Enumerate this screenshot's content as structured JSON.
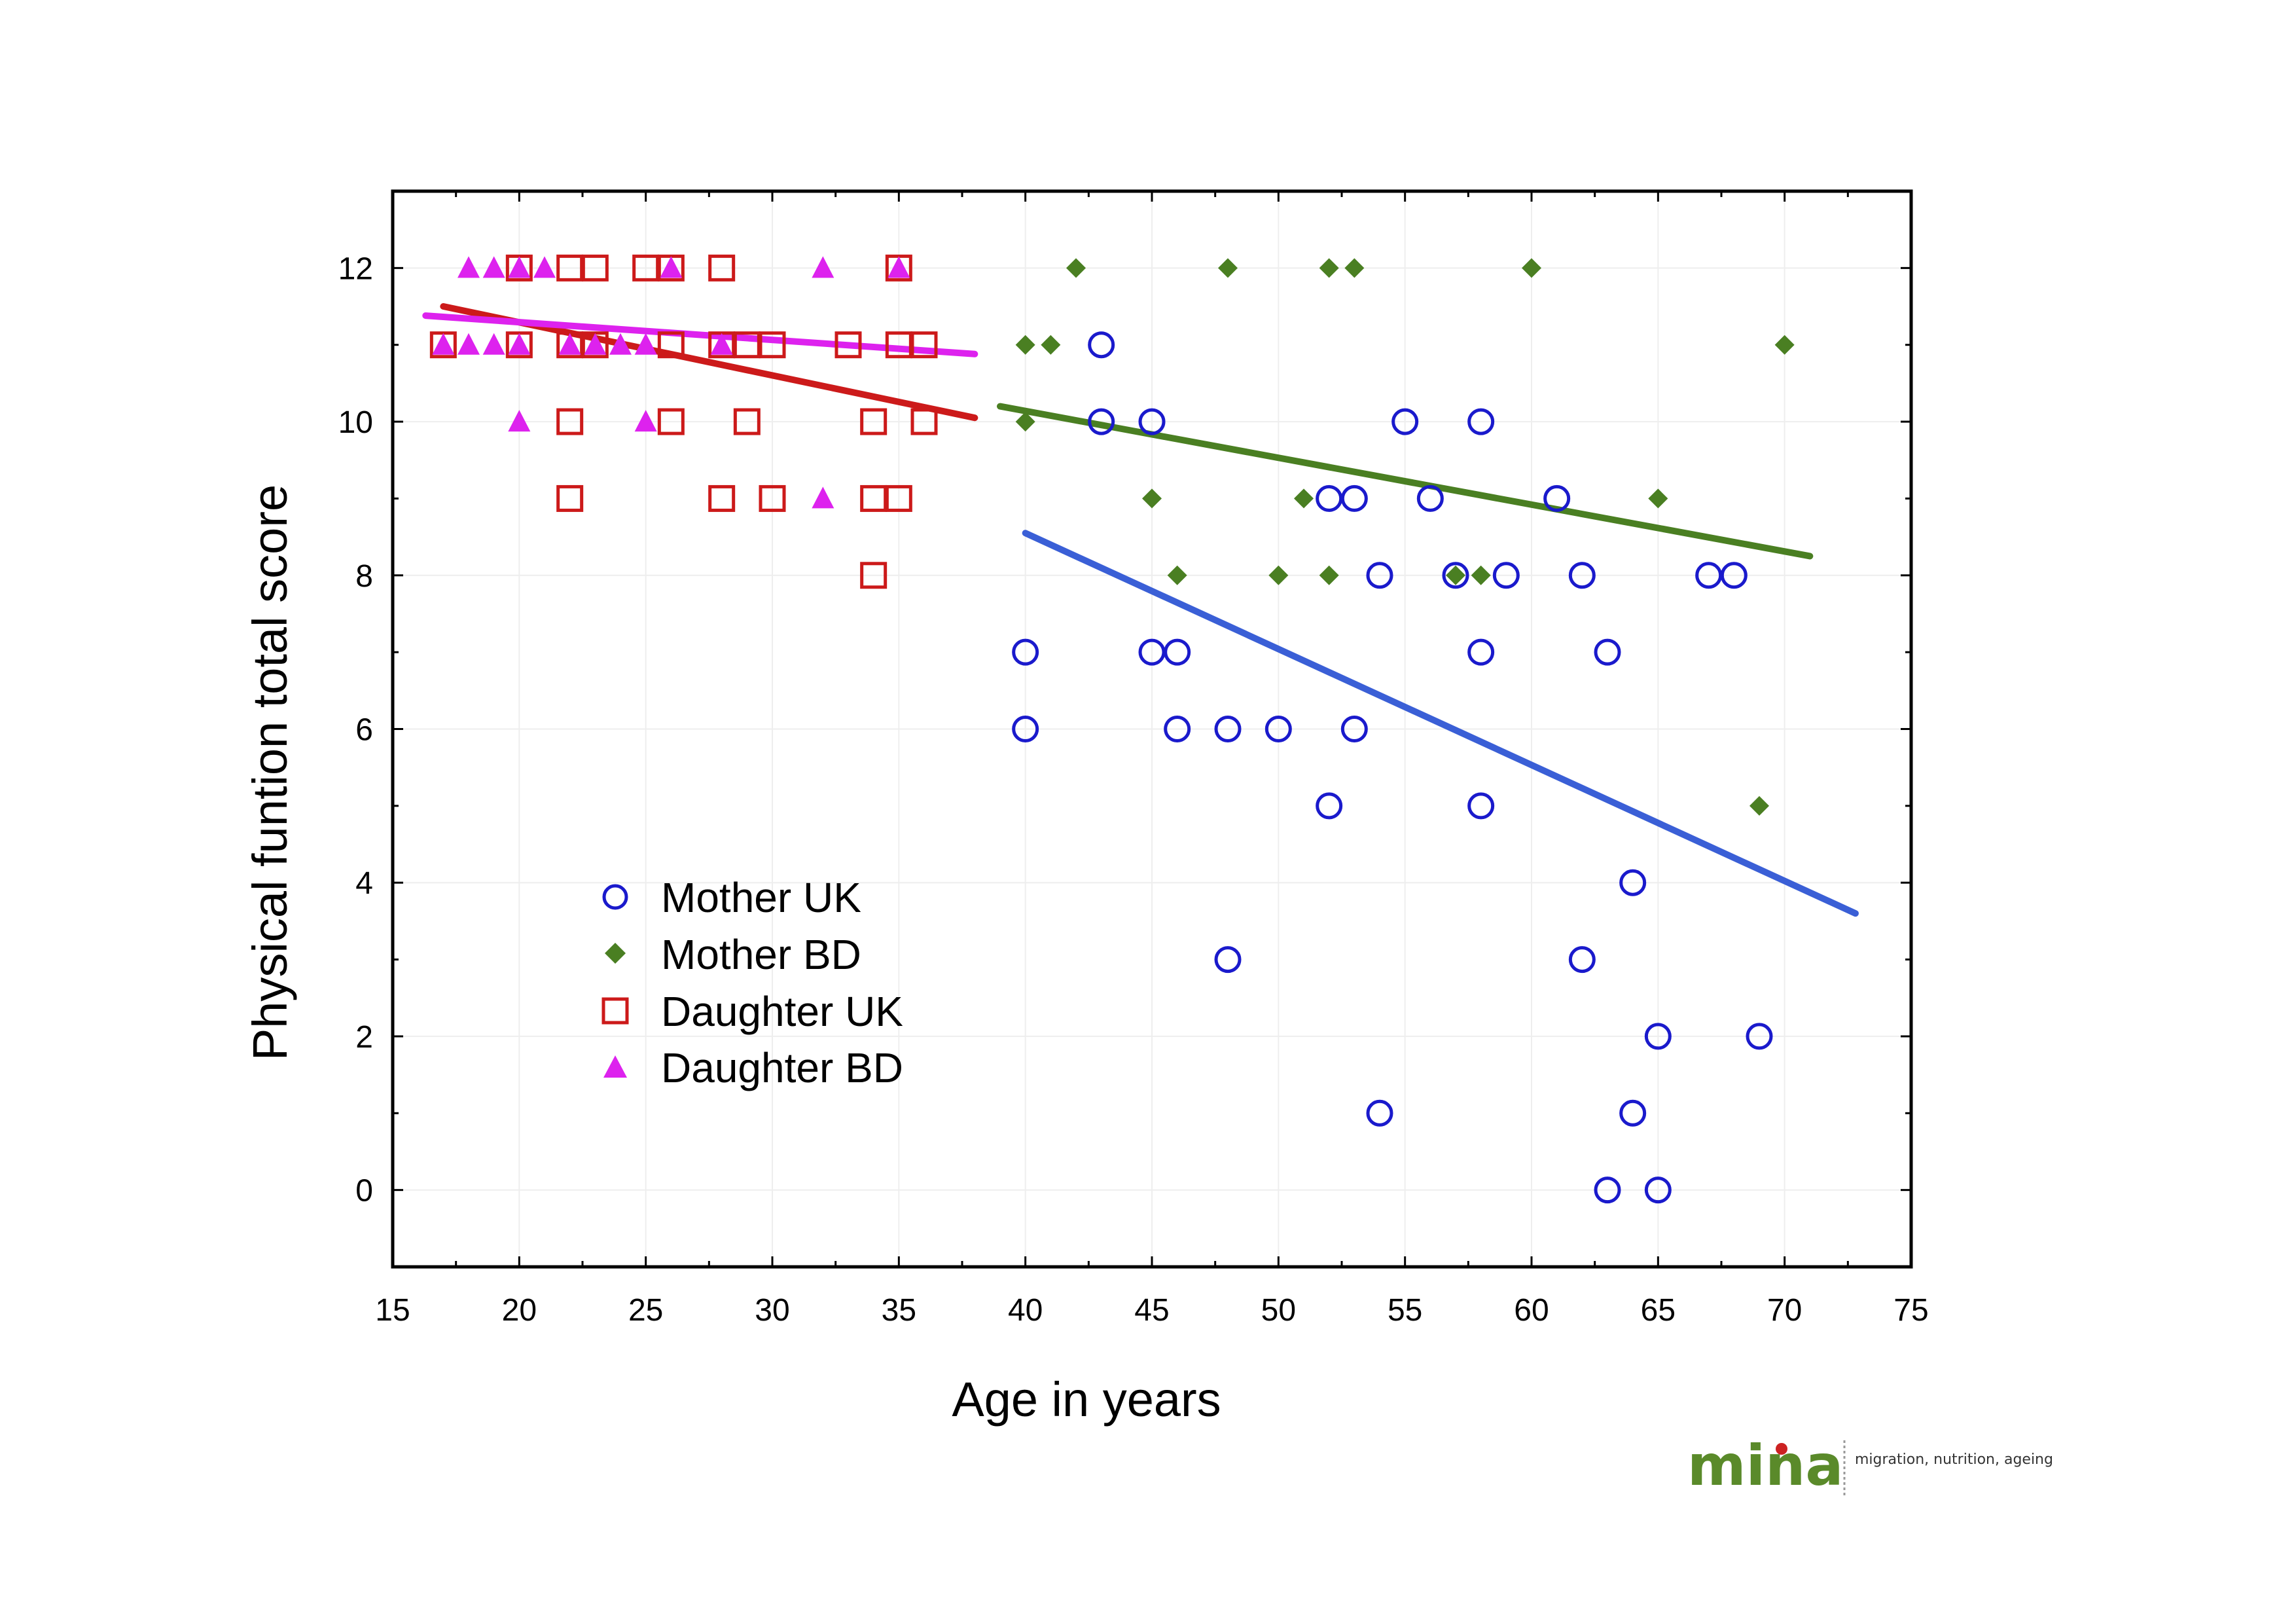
{
  "chart_data": {
    "type": "scatter",
    "xlabel": "Age in years",
    "ylabel": "Physical funtion total score",
    "xlim": [
      15,
      75
    ],
    "ylim": [
      -1,
      13
    ],
    "x_ticks": [
      15,
      20,
      25,
      30,
      35,
      40,
      45,
      50,
      55,
      60,
      65,
      70,
      75
    ],
    "y_ticks": [
      0,
      2,
      4,
      6,
      8,
      10,
      12
    ],
    "grid": true,
    "legend_position": "lower-left",
    "series": [
      {
        "name": "Mother UK",
        "marker": "circle",
        "color": "#1a1acc",
        "line_color": "#3a5fd6",
        "points": [
          [
            43,
            11
          ],
          [
            43,
            10
          ],
          [
            45,
            10
          ],
          [
            55,
            10
          ],
          [
            58,
            10
          ],
          [
            52,
            9
          ],
          [
            53,
            9
          ],
          [
            56,
            9
          ],
          [
            61,
            9
          ],
          [
            54,
            8
          ],
          [
            57,
            8
          ],
          [
            59,
            8
          ],
          [
            62,
            8
          ],
          [
            67,
            8
          ],
          [
            68,
            8
          ],
          [
            40,
            7
          ],
          [
            45,
            7
          ],
          [
            46,
            7
          ],
          [
            58,
            7
          ],
          [
            63,
            7
          ],
          [
            40,
            6
          ],
          [
            46,
            6
          ],
          [
            48,
            6
          ],
          [
            50,
            6
          ],
          [
            53,
            6
          ],
          [
            52,
            5
          ],
          [
            58,
            5
          ],
          [
            64,
            4
          ],
          [
            48,
            3
          ],
          [
            62,
            3
          ],
          [
            65,
            2
          ],
          [
            69,
            2
          ],
          [
            54,
            1
          ],
          [
            64,
            1
          ],
          [
            63,
            0
          ],
          [
            65,
            0
          ]
        ],
        "trend": [
          [
            40,
            8.55
          ],
          [
            72.8,
            3.6
          ]
        ]
      },
      {
        "name": "Mother BD",
        "marker": "diamond",
        "color": "#4a7f22",
        "line_color": "#4a7f22",
        "points": [
          [
            42,
            12
          ],
          [
            48,
            12
          ],
          [
            52,
            12
          ],
          [
            53,
            12
          ],
          [
            60,
            12
          ],
          [
            40,
            11
          ],
          [
            41,
            11
          ],
          [
            70,
            11
          ],
          [
            40,
            10
          ],
          [
            45,
            9
          ],
          [
            51,
            9
          ],
          [
            65,
            9
          ],
          [
            46,
            8
          ],
          [
            50,
            8
          ],
          [
            52,
            8
          ],
          [
            57,
            8
          ],
          [
            58,
            8
          ],
          [
            69,
            5
          ]
        ],
        "trend": [
          [
            39,
            10.2
          ],
          [
            71,
            8.25
          ]
        ]
      },
      {
        "name": "Daughter UK",
        "marker": "square",
        "color": "#cc1a1a",
        "line_color": "#cc1a1a",
        "points": [
          [
            20,
            12
          ],
          [
            22,
            12
          ],
          [
            23,
            12
          ],
          [
            25,
            12
          ],
          [
            26,
            12
          ],
          [
            28,
            12
          ],
          [
            35,
            12
          ],
          [
            17,
            11
          ],
          [
            20,
            11
          ],
          [
            22,
            11
          ],
          [
            23,
            11
          ],
          [
            26,
            11
          ],
          [
            28,
            11
          ],
          [
            29,
            11
          ],
          [
            30,
            11
          ],
          [
            33,
            11
          ],
          [
            35,
            11
          ],
          [
            36,
            11
          ],
          [
            22,
            10
          ],
          [
            26,
            10
          ],
          [
            29,
            10
          ],
          [
            34,
            10
          ],
          [
            36,
            10
          ],
          [
            22,
            9
          ],
          [
            28,
            9
          ],
          [
            30,
            9
          ],
          [
            34,
            9
          ],
          [
            35,
            9
          ],
          [
            34,
            8
          ]
        ],
        "trend": [
          [
            17,
            11.5
          ],
          [
            38,
            10.05
          ]
        ]
      },
      {
        "name": "Daughter BD",
        "marker": "triangle",
        "color": "#dd22ee",
        "line_color": "#dd22ee",
        "points": [
          [
            18,
            12
          ],
          [
            19,
            12
          ],
          [
            20,
            12
          ],
          [
            21,
            12
          ],
          [
            26,
            12
          ],
          [
            32,
            12
          ],
          [
            35,
            12
          ],
          [
            17,
            11
          ],
          [
            18,
            11
          ],
          [
            19,
            11
          ],
          [
            20,
            11
          ],
          [
            22,
            11
          ],
          [
            23,
            11
          ],
          [
            24,
            11
          ],
          [
            25,
            11
          ],
          [
            28,
            11
          ],
          [
            20,
            10
          ],
          [
            25,
            10
          ],
          [
            32,
            9
          ]
        ],
        "trend": [
          [
            16.3,
            11.38
          ],
          [
            38,
            10.88
          ]
        ]
      }
    ]
  },
  "logo": {
    "word": "mina",
    "tagline": "migration, nutrition, ageing"
  }
}
